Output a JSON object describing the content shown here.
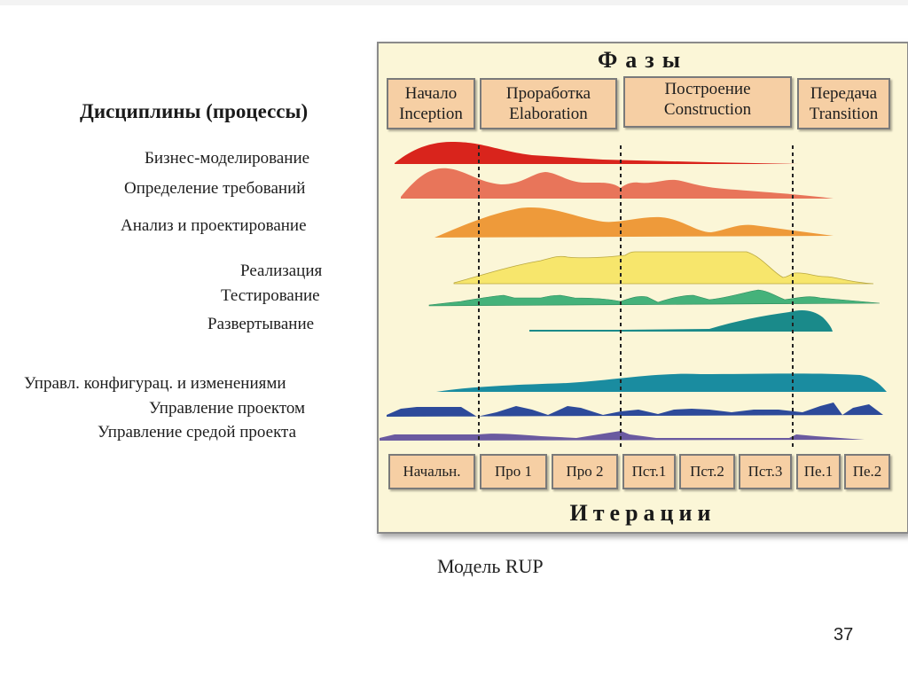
{
  "disciplines": {
    "heading": "Дисциплины (процессы)",
    "items": [
      "Бизнес-моделирование",
      "Определение требований",
      "Анализ и проектирование",
      "Реализация",
      "Тестирование",
      "Развертывание",
      "Управл. конфигурац. и изменениями",
      "Управление проектом",
      "Управление средой проекта"
    ]
  },
  "panel": {
    "title": "Фазы",
    "footer": "Итерации",
    "phases": [
      {
        "ru": "Начало",
        "en": "Inception"
      },
      {
        "ru": "Проработка",
        "en": "Elaboration"
      },
      {
        "ru": "Построение",
        "en": "Construction"
      },
      {
        "ru": "Передача",
        "en": "Transition"
      }
    ],
    "iterations": [
      "Начальн.",
      "Про 1",
      "Про 2",
      "Пст.1",
      "Пст.2",
      "Пст.3",
      "Пе.1",
      "Пе.2"
    ]
  },
  "colors": {
    "panel_bg": "#fbf6d7",
    "box_fill": "#f6cfa4",
    "business_modeling": "#d9241c",
    "requirements": "#e8755a",
    "analysis_design": "#ee9a3a",
    "implementation": "#f7e66c",
    "test": "#45b27a",
    "deployment": "#1a8a8a",
    "config_change": "#1a8ca0",
    "project_mgmt": "#2d4a9a",
    "environment": "#6a5aa0"
  },
  "caption": "Модель RUP",
  "page_number": "37"
}
